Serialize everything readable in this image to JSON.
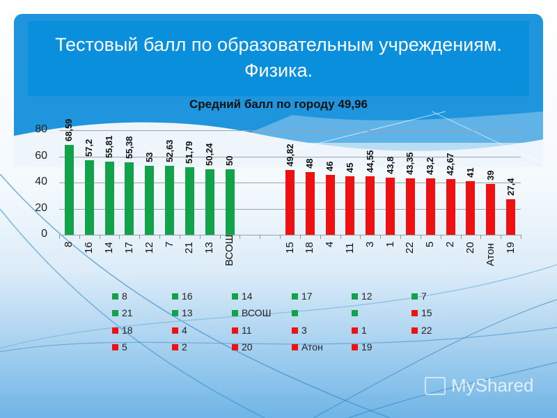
{
  "slide": {
    "title_line1": "Тестовый балл по образовательным учреждениям.",
    "title_line2": "Физика.",
    "watermark": "MyShared",
    "colors": {
      "green": "#12a34a",
      "red": "#ee1111",
      "panel": "#1e95dd",
      "title_box": "#0a8fdc"
    }
  },
  "chart_data": {
    "type": "bar",
    "title": "Средний балл по  городу 49,96",
    "xlabel": "",
    "ylabel": "",
    "ylim": [
      0,
      80
    ],
    "yticks": [
      "0",
      "20",
      "40",
      "60",
      "80"
    ],
    "grid": true,
    "legend_position": "bottom",
    "categories": [
      "8",
      "16",
      "14",
      "17",
      "12",
      "7",
      "21",
      "13",
      "ВСОШ",
      "",
      "",
      "15",
      "18",
      "4",
      "11",
      "3",
      "1",
      "22",
      "5",
      "2",
      "20",
      "Атон",
      "19"
    ],
    "series": [
      {
        "name": "above_city_average",
        "color": "#12a34a",
        "values": [
          68.59,
          57.2,
          55.81,
          55.38,
          53,
          52.63,
          51.79,
          50.24,
          50,
          null,
          null,
          null,
          null,
          null,
          null,
          null,
          null,
          null,
          null,
          null,
          null,
          null,
          null
        ],
        "labels": [
          "68,59",
          "57,2",
          "55,81",
          "55,38",
          "53",
          "52,63",
          "51,79",
          "50,24",
          "50"
        ]
      },
      {
        "name": "below_city_average",
        "color": "#ee1111",
        "values": [
          null,
          null,
          null,
          null,
          null,
          null,
          null,
          null,
          null,
          null,
          null,
          49.82,
          48,
          46,
          45,
          44.55,
          43.8,
          43.35,
          43.2,
          42.67,
          41,
          39,
          27.4
        ],
        "labels": [
          "49,82",
          "48",
          "46",
          "45",
          "44,55",
          "43,8",
          "43,35",
          "43,2",
          "42,67",
          "41",
          "39",
          "27,4"
        ]
      }
    ],
    "city_average": 49.96
  },
  "bars": [
    {
      "cat": "8",
      "value": 68.59,
      "label": "68,59",
      "color": "green",
      "slot": 0
    },
    {
      "cat": "16",
      "value": 57.2,
      "label": "57,2",
      "color": "green",
      "slot": 1
    },
    {
      "cat": "14",
      "value": 55.81,
      "label": "55,81",
      "color": "green",
      "slot": 2
    },
    {
      "cat": "17",
      "value": 55.38,
      "label": "55,38",
      "color": "green",
      "slot": 3
    },
    {
      "cat": "12",
      "value": 53,
      "label": "53",
      "color": "green",
      "slot": 4
    },
    {
      "cat": "7",
      "value": 52.63,
      "label": "52,63",
      "color": "green",
      "slot": 5
    },
    {
      "cat": "21",
      "value": 51.79,
      "label": "51,79",
      "color": "green",
      "slot": 6
    },
    {
      "cat": "13",
      "value": 50.24,
      "label": "50,24",
      "color": "green",
      "slot": 7
    },
    {
      "cat": "ВСОШ",
      "value": 50,
      "label": "50",
      "color": "green",
      "slot": 8
    },
    {
      "cat": "15",
      "value": 49.82,
      "label": "49,82",
      "color": "red",
      "slot": 11
    },
    {
      "cat": "18",
      "value": 48,
      "label": "48",
      "color": "red",
      "slot": 12
    },
    {
      "cat": "4",
      "value": 46,
      "label": "46",
      "color": "red",
      "slot": 13
    },
    {
      "cat": "11",
      "value": 45,
      "label": "45",
      "color": "red",
      "slot": 14
    },
    {
      "cat": "3",
      "value": 44.55,
      "label": "44,55",
      "color": "red",
      "slot": 15
    },
    {
      "cat": "1",
      "value": 43.8,
      "label": "43,8",
      "color": "red",
      "slot": 16
    },
    {
      "cat": "22",
      "value": 43.35,
      "label": "43,35",
      "color": "red",
      "slot": 17
    },
    {
      "cat": "5",
      "value": 43.2,
      "label": "43,2",
      "color": "red",
      "slot": 18
    },
    {
      "cat": "2",
      "value": 42.67,
      "label": "42,67",
      "color": "red",
      "slot": 19
    },
    {
      "cat": "20",
      "value": 41,
      "label": "41",
      "color": "red",
      "slot": 20
    },
    {
      "cat": "Атон",
      "value": 39,
      "label": "39",
      "color": "red",
      "slot": 21
    },
    {
      "cat": "19",
      "value": 27.4,
      "label": "27,4",
      "color": "red",
      "slot": 22
    }
  ],
  "legend": [
    {
      "label": "8",
      "color": "green"
    },
    {
      "label": "16",
      "color": "green"
    },
    {
      "label": "14",
      "color": "green"
    },
    {
      "label": "17",
      "color": "green"
    },
    {
      "label": "12",
      "color": "green"
    },
    {
      "label": "7",
      "color": "green"
    },
    {
      "label": "21",
      "color": "green"
    },
    {
      "label": "13",
      "color": "green"
    },
    {
      "label": "ВСОШ",
      "color": "green"
    },
    {
      "label": "",
      "color": "green"
    },
    {
      "label": "",
      "color": "green"
    },
    {
      "label": "15",
      "color": "red"
    },
    {
      "label": "18",
      "color": "red"
    },
    {
      "label": "4",
      "color": "red"
    },
    {
      "label": "11",
      "color": "red"
    },
    {
      "label": "3",
      "color": "red"
    },
    {
      "label": "1",
      "color": "red"
    },
    {
      "label": "22",
      "color": "red"
    },
    {
      "label": "5",
      "color": "red"
    },
    {
      "label": "2",
      "color": "red"
    },
    {
      "label": "20",
      "color": "red"
    },
    {
      "label": "Атон",
      "color": "red"
    },
    {
      "label": "19",
      "color": "red"
    }
  ]
}
